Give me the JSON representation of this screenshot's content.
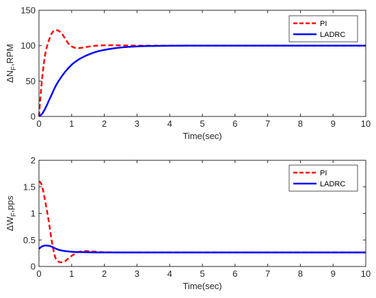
{
  "chart_data": [
    {
      "type": "line",
      "xlabel": "Time(sec)",
      "ylabel_main": "ΔN",
      "ylabel_sub": "F",
      "ylabel_rest": ",RPM",
      "xlim": [
        0,
        10
      ],
      "ylim": [
        0,
        150
      ],
      "xticks": [
        "0",
        "1",
        "2",
        "3",
        "4",
        "5",
        "6",
        "7",
        "8",
        "9",
        "10"
      ],
      "yticks": [
        "0",
        "50",
        "100",
        "150"
      ],
      "grid": false,
      "legend_position": "top-right",
      "series": [
        {
          "name": "PI",
          "color": "#ff0000",
          "style": "dashed",
          "x": [
            0,
            0.05,
            0.1,
            0.15,
            0.2,
            0.3,
            0.4,
            0.5,
            0.6,
            0.7,
            0.8,
            0.9,
            1.0,
            1.1,
            1.2,
            1.3,
            1.5,
            1.75,
            2.0,
            2.25,
            2.5,
            3.0,
            3.5,
            4.0,
            5.0,
            6.0,
            8.0,
            10.0
          ],
          "y": [
            0,
            30,
            55,
            75,
            90,
            107,
            118,
            122,
            121,
            117,
            110,
            103,
            99,
            97,
            96.5,
            97,
            98.5,
            100,
            100.5,
            100.6,
            100.4,
            100.1,
            100,
            100,
            100,
            100,
            100,
            100
          ]
        },
        {
          "name": "LADRC",
          "color": "#0000ff",
          "style": "solid",
          "x": [
            0,
            0.1,
            0.2,
            0.3,
            0.4,
            0.5,
            0.6,
            0.8,
            1.0,
            1.2,
            1.4,
            1.6,
            1.8,
            2.0,
            2.3,
            2.6,
            3.0,
            3.5,
            4.0,
            4.5,
            5.0,
            6.0,
            8.0,
            10.0
          ],
          "y": [
            0,
            4,
            12,
            22,
            32,
            42,
            50,
            63,
            73,
            80,
            85,
            89,
            92,
            94,
            96.3,
            97.8,
            99,
            99.6,
            99.9,
            100,
            100,
            100,
            100,
            100
          ]
        }
      ]
    },
    {
      "type": "line",
      "xlabel": "Time(sec)",
      "ylabel_main": "ΔW",
      "ylabel_sub": "F",
      "ylabel_rest": ",pps",
      "xlim": [
        0,
        10
      ],
      "ylim": [
        0,
        2
      ],
      "xticks": [
        "0",
        "1",
        "2",
        "3",
        "4",
        "5",
        "6",
        "7",
        "8",
        "9",
        "10"
      ],
      "yticks": [
        "0",
        "0.5",
        "1",
        "1.5",
        "2"
      ],
      "grid": false,
      "legend_position": "top-right",
      "series": [
        {
          "name": "PI",
          "color": "#ff0000",
          "style": "dashed",
          "x": [
            0,
            0.05,
            0.1,
            0.2,
            0.3,
            0.4,
            0.5,
            0.6,
            0.7,
            0.8,
            0.9,
            1.0,
            1.1,
            1.2,
            1.4,
            1.6,
            1.8,
            2.0,
            2.5,
            3.0,
            4.0,
            6.0,
            8.0,
            10.0
          ],
          "y": [
            1.6,
            1.58,
            1.5,
            1.2,
            0.85,
            0.45,
            0.17,
            0.09,
            0.08,
            0.1,
            0.15,
            0.2,
            0.24,
            0.27,
            0.29,
            0.285,
            0.275,
            0.27,
            0.265,
            0.265,
            0.265,
            0.265,
            0.265,
            0.265
          ]
        },
        {
          "name": "LADRC",
          "color": "#0000ff",
          "style": "solid",
          "x": [
            0,
            0.05,
            0.1,
            0.2,
            0.3,
            0.4,
            0.5,
            0.6,
            0.7,
            0.8,
            1.0,
            1.2,
            1.5,
            2.0,
            3.0,
            4.0,
            6.0,
            8.0,
            10.0
          ],
          "y": [
            0.33,
            0.36,
            0.38,
            0.395,
            0.39,
            0.37,
            0.34,
            0.315,
            0.3,
            0.29,
            0.278,
            0.272,
            0.268,
            0.265,
            0.265,
            0.265,
            0.265,
            0.265,
            0.265
          ]
        }
      ]
    }
  ]
}
